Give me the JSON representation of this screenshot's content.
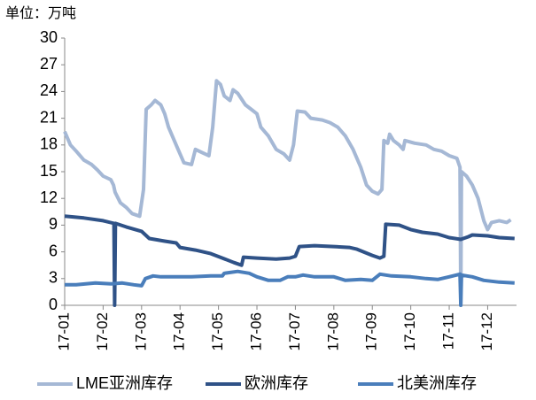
{
  "chart_data": {
    "type": "line",
    "unit_label": "单位：万吨",
    "xlim": [
      0,
      11.75
    ],
    "ylim": [
      0,
      30
    ],
    "yticks": [
      0,
      3,
      6,
      9,
      12,
      15,
      18,
      21,
      24,
      27,
      30
    ],
    "xticks": [
      {
        "value": 0,
        "label": "17-01"
      },
      {
        "value": 1,
        "label": "17-02"
      },
      {
        "value": 2,
        "label": "17-03"
      },
      {
        "value": 3,
        "label": "17-04"
      },
      {
        "value": 4,
        "label": "17-05"
      },
      {
        "value": 5,
        "label": "17-06"
      },
      {
        "value": 6,
        "label": "17-07"
      },
      {
        "value": 7,
        "label": "17-08"
      },
      {
        "value": 8,
        "label": "17-09"
      },
      {
        "value": 9,
        "label": "17-10"
      },
      {
        "value": 10,
        "label": "17-11"
      },
      {
        "value": 11,
        "label": "17-12"
      }
    ],
    "series": [
      {
        "name": "LME亚洲库存",
        "color": "#a5b8d5",
        "x": [
          0,
          0.15,
          0.3,
          0.5,
          0.7,
          0.85,
          1.0,
          1.2,
          1.27,
          1.31,
          1.45,
          1.6,
          1.75,
          1.95,
          2.05,
          2.12,
          2.25,
          2.35,
          2.5,
          2.6,
          2.7,
          2.85,
          2.95,
          3.1,
          3.3,
          3.4,
          3.55,
          3.75,
          3.85,
          3.95,
          4.05,
          4.15,
          4.3,
          4.38,
          4.5,
          4.7,
          4.85,
          5.0,
          5.1,
          5.3,
          5.5,
          5.7,
          5.85,
          5.95,
          6.05,
          6.25,
          6.4,
          6.7,
          6.9,
          7.1,
          7.3,
          7.5,
          7.7,
          7.85,
          8.0,
          8.15,
          8.25,
          8.3,
          8.4,
          8.45,
          8.55,
          8.7,
          8.8,
          8.85,
          9.1,
          9.4,
          9.6,
          9.8,
          10.0,
          10.2,
          10.28,
          10.3,
          10.32,
          10.45,
          10.6,
          10.75,
          10.9,
          11.0,
          11.1,
          11.3,
          11.5,
          11.6
        ],
        "values": [
          19.5,
          18,
          17.3,
          16.3,
          15.8,
          15.2,
          14.5,
          14.1,
          13.5,
          12.7,
          11.5,
          11,
          10.3,
          10,
          13,
          22,
          22.5,
          23,
          22.5,
          21.5,
          20,
          18.5,
          17.5,
          16,
          15.8,
          17.5,
          17.2,
          16.8,
          20,
          25.2,
          24.8,
          23.5,
          23,
          24.2,
          23.8,
          22.5,
          22,
          21.5,
          20,
          19,
          17.5,
          17,
          16.3,
          18,
          21.8,
          21.7,
          21,
          20.8,
          20.5,
          20,
          19,
          17.5,
          15.5,
          13.5,
          12.8,
          12.5,
          13,
          18.5,
          18.2,
          19.2,
          18.5,
          18,
          17.5,
          18.5,
          18.2,
          18,
          17.5,
          17.3,
          16.8,
          16.5,
          15.5,
          0,
          15,
          14.5,
          13.5,
          12,
          9.5,
          8.5,
          9.3,
          9.5,
          9.3,
          9.6
        ]
      },
      {
        "name": "欧洲库存",
        "color": "#2f5287",
        "x": [
          0,
          0.5,
          1.0,
          1.28,
          1.3,
          1.32,
          1.6,
          2.0,
          2.2,
          2.6,
          2.9,
          3.0,
          3.4,
          3.8,
          4.1,
          4.4,
          4.6,
          4.65,
          5.0,
          5.5,
          5.85,
          6.0,
          6.1,
          6.5,
          7.0,
          7.4,
          7.6,
          8.0,
          8.2,
          8.3,
          8.35,
          8.7,
          9.0,
          9.3,
          9.7,
          10.0,
          10.3,
          10.5,
          10.6,
          11.0,
          11.3,
          11.7
        ],
        "values": [
          10,
          9.8,
          9.5,
          9.2,
          0,
          9.2,
          8.8,
          8.3,
          7.5,
          7.2,
          7,
          6.5,
          6.2,
          5.8,
          5.3,
          4.8,
          4.5,
          5.4,
          5.3,
          5.2,
          5.3,
          5.5,
          6.6,
          6.7,
          6.6,
          6.5,
          6.3,
          5.6,
          5.3,
          5.5,
          9.1,
          9,
          8.5,
          8.2,
          8,
          7.6,
          7.4,
          7.7,
          7.9,
          7.8,
          7.6,
          7.5
        ]
      },
      {
        "name": "北美洲库存",
        "color": "#4a7ebb",
        "x": [
          0,
          0.3,
          0.8,
          1.2,
          1.5,
          1.8,
          2.0,
          2.1,
          2.3,
          2.5,
          3.0,
          3.3,
          3.8,
          4.1,
          4.15,
          4.5,
          4.8,
          5.0,
          5.3,
          5.6,
          5.8,
          6.0,
          6.2,
          6.5,
          7.0,
          7.3,
          7.7,
          8.0,
          8.2,
          8.5,
          9.0,
          9.4,
          9.7,
          10.0,
          10.28,
          10.3,
          10.32,
          10.6,
          10.9,
          11.3,
          11.7
        ],
        "values": [
          2.3,
          2.3,
          2.5,
          2.4,
          2.5,
          2.3,
          2.2,
          3,
          3.3,
          3.2,
          3.2,
          3.2,
          3.3,
          3.3,
          3.6,
          3.8,
          3.6,
          3.2,
          2.8,
          2.8,
          3.2,
          3.2,
          3.4,
          3.2,
          3.2,
          2.8,
          2.9,
          2.8,
          3.5,
          3.3,
          3.2,
          3,
          2.9,
          3.2,
          3.5,
          0,
          3.4,
          3.2,
          2.8,
          2.6,
          2.5
        ]
      }
    ]
  }
}
